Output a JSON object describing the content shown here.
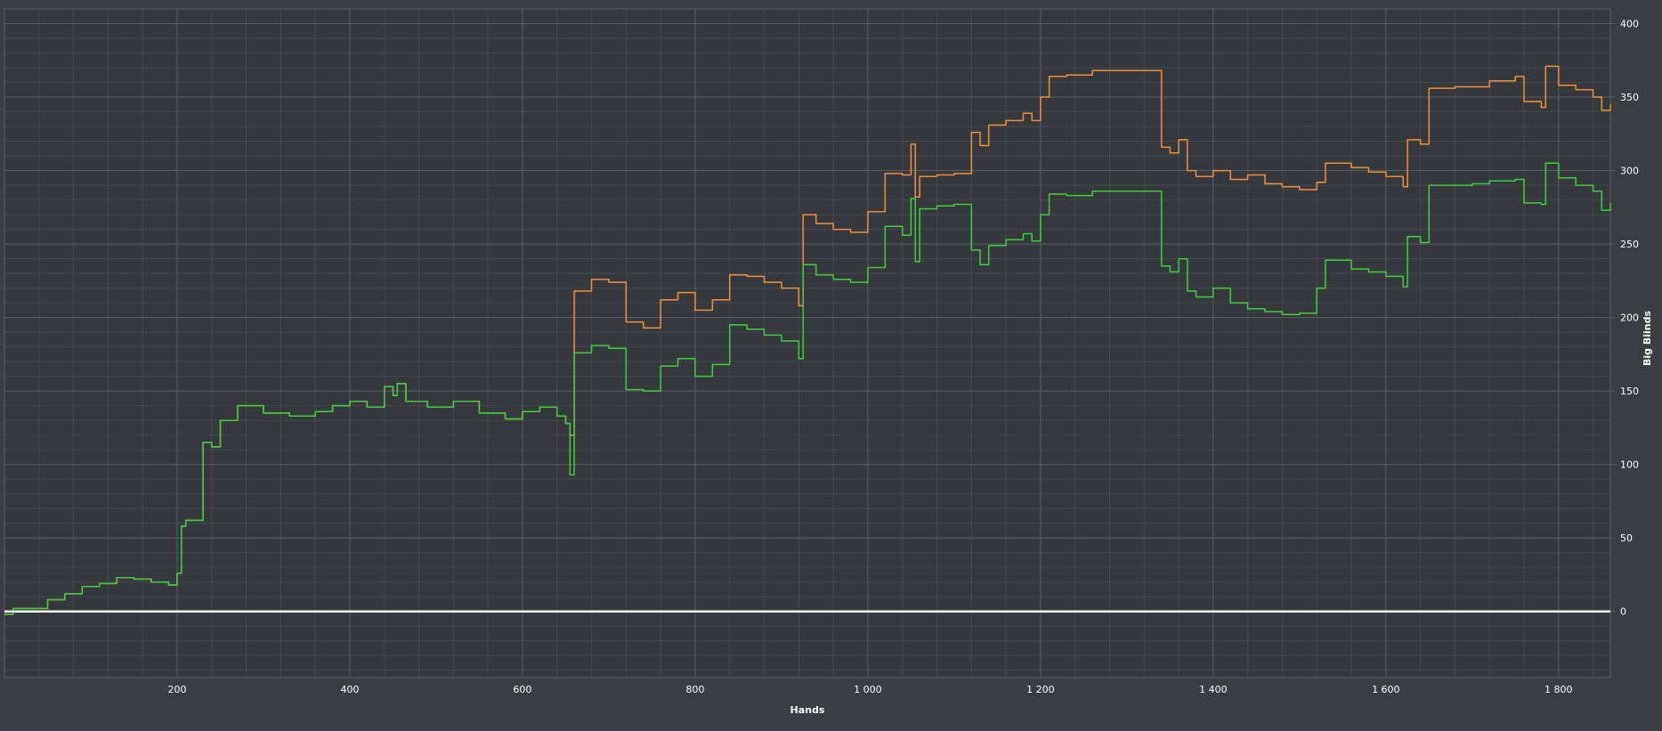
{
  "chart_data": {
    "type": "line",
    "xlabel": "Hands",
    "ylabel": "Big Blinds",
    "xlim": [
      0,
      1860
    ],
    "ylim": [
      -45,
      410
    ],
    "x_ticks": [
      200,
      400,
      600,
      800,
      1000,
      1200,
      1400,
      1600,
      1800
    ],
    "x_tick_labels": [
      "200",
      "400",
      "600",
      "800",
      "1 000",
      "1 200",
      "1 400",
      "1 600",
      "1 800"
    ],
    "y_ticks": [
      0,
      50,
      100,
      150,
      200,
      250,
      300,
      350,
      400
    ],
    "y_tick_labels": [
      "0",
      "50",
      "100",
      "150",
      "200",
      "250",
      "300",
      "350",
      "400"
    ],
    "grid": true,
    "legend": "none",
    "colors": {
      "background": "#3a3d41",
      "plot_background": "#35383c",
      "grid_major": "#5a5e63",
      "grid_minor": "#45484d",
      "text": "#ffffff",
      "zero_line": "#ffffff"
    },
    "series": [
      {
        "color": "#f0913a",
        "x": [
          0,
          10,
          30,
          50,
          70,
          90,
          110,
          130,
          150,
          170,
          190,
          200,
          205,
          210,
          230,
          240,
          250,
          270,
          300,
          330,
          360,
          380,
          400,
          420,
          440,
          450,
          455,
          465,
          490,
          520,
          550,
          580,
          600,
          620,
          640,
          650,
          655,
          660,
          680,
          700,
          720,
          740,
          760,
          780,
          800,
          820,
          840,
          860,
          880,
          900,
          920,
          925,
          940,
          960,
          980,
          1000,
          1020,
          1040,
          1050,
          1055,
          1060,
          1080,
          1100,
          1120,
          1130,
          1140,
          1160,
          1180,
          1190,
          1200,
          1210,
          1230,
          1260,
          1290,
          1320,
          1335,
          1340,
          1350,
          1360,
          1370,
          1380,
          1400,
          1420,
          1440,
          1460,
          1480,
          1500,
          1520,
          1530,
          1560,
          1580,
          1600,
          1620,
          1625,
          1640,
          1650,
          1680,
          1700,
          1720,
          1750,
          1760,
          1780,
          1785,
          1800,
          1820,
          1840,
          1850,
          1860
        ],
        "y": [
          -2,
          2,
          2,
          8,
          12,
          17,
          19,
          23,
          22,
          20,
          18,
          26,
          58,
          62,
          115,
          112,
          130,
          140,
          135,
          133,
          136,
          140,
          143,
          139,
          153,
          147,
          155,
          143,
          139,
          143,
          135,
          131,
          136,
          139,
          133,
          128,
          120,
          218,
          226,
          224,
          197,
          193,
          212,
          217,
          205,
          212,
          229,
          228,
          224,
          220,
          208,
          270,
          264,
          260,
          258,
          272,
          298,
          297,
          318,
          282,
          296,
          297,
          298,
          326,
          317,
          331,
          334,
          339,
          334,
          350,
          364,
          365,
          368,
          368,
          368,
          368,
          316,
          312,
          321,
          300,
          296,
          300,
          294,
          297,
          291,
          289,
          287,
          292,
          305,
          302,
          299,
          296,
          289,
          321,
          318,
          356,
          357,
          357,
          361,
          364,
          347,
          343,
          371,
          358,
          355,
          350,
          341,
          345
        ]
      },
      {
        "color": "#3fce3f",
        "x": [
          0,
          10,
          30,
          50,
          70,
          90,
          110,
          130,
          150,
          170,
          190,
          200,
          205,
          210,
          230,
          240,
          250,
          270,
          300,
          330,
          360,
          380,
          400,
          420,
          440,
          450,
          455,
          465,
          490,
          520,
          550,
          580,
          600,
          620,
          640,
          650,
          655,
          660,
          680,
          700,
          720,
          740,
          760,
          780,
          800,
          820,
          840,
          860,
          880,
          900,
          920,
          925,
          940,
          960,
          980,
          1000,
          1020,
          1040,
          1050,
          1055,
          1060,
          1080,
          1100,
          1120,
          1130,
          1140,
          1160,
          1180,
          1190,
          1200,
          1210,
          1230,
          1260,
          1290,
          1320,
          1335,
          1340,
          1350,
          1360,
          1370,
          1380,
          1400,
          1420,
          1440,
          1460,
          1480,
          1500,
          1520,
          1530,
          1560,
          1580,
          1600,
          1620,
          1625,
          1640,
          1650,
          1680,
          1700,
          1720,
          1750,
          1760,
          1780,
          1785,
          1800,
          1820,
          1840,
          1850,
          1860
        ],
        "y": [
          -2,
          2,
          2,
          8,
          12,
          17,
          19,
          23,
          22,
          20,
          18,
          26,
          58,
          62,
          115,
          112,
          130,
          140,
          135,
          133,
          136,
          140,
          143,
          139,
          153,
          147,
          155,
          143,
          139,
          143,
          135,
          131,
          136,
          139,
          133,
          128,
          93,
          176,
          181,
          179,
          151,
          150,
          167,
          172,
          160,
          168,
          195,
          192,
          188,
          184,
          172,
          236,
          229,
          226,
          224,
          234,
          262,
          256,
          281,
          238,
          274,
          276,
          277,
          246,
          236,
          249,
          253,
          257,
          252,
          270,
          284,
          283,
          286,
          286,
          286,
          286,
          235,
          231,
          240,
          218,
          214,
          220,
          210,
          206,
          204,
          202,
          203,
          220,
          239,
          233,
          231,
          228,
          221,
          255,
          251,
          290,
          290,
          291,
          293,
          294,
          278,
          277,
          305,
          295,
          290,
          286,
          273,
          278
        ]
      },
      {
        "color": "#ffffff",
        "x": [
          0,
          1860
        ],
        "y": [
          0,
          0
        ]
      }
    ]
  }
}
